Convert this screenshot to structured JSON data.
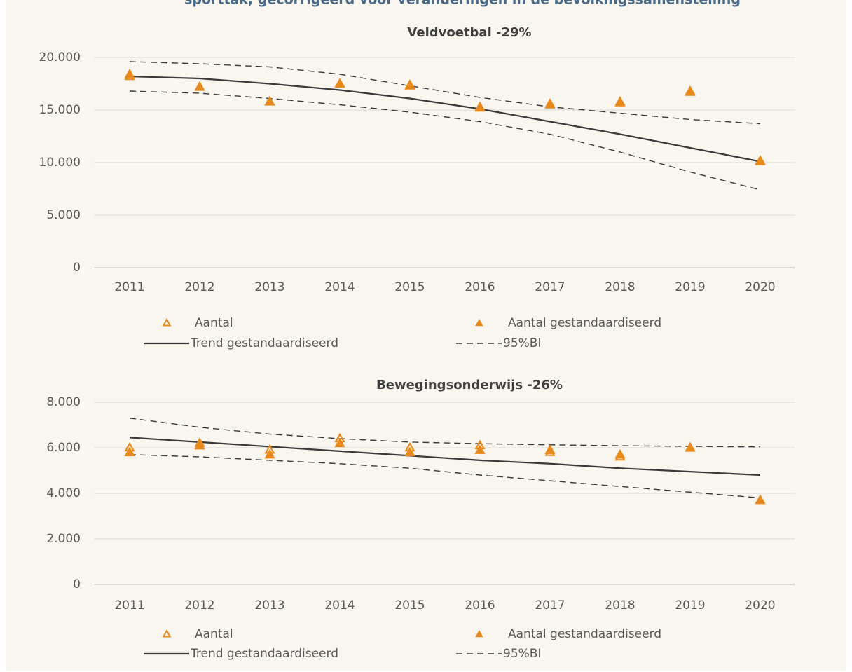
{
  "header": {
    "title": "sporttak, gecorrigeerd voor veranderingen in de bevolkingssamenstelling"
  },
  "chart_data": [
    {
      "type": "line",
      "title": "Veldvoetbal -29%",
      "categories": [
        "2011",
        "2012",
        "2013",
        "2014",
        "2015",
        "2016",
        "2017",
        "2018",
        "2019",
        "2020"
      ],
      "ylim": [
        0,
        20000
      ],
      "yticks": [
        0,
        {
          "value": 5000,
          "label": "5.000"
        },
        {
          "value": 10000,
          "label": "10.000"
        },
        {
          "value": 15000,
          "label": "15.000"
        },
        {
          "value": 20000,
          "label": "20.000"
        }
      ],
      "grid": true,
      "series": [
        {
          "name": "Aantal",
          "color": "#e8891c",
          "style": "open-marker",
          "values": [
            18200,
            17200,
            15800,
            17500,
            17300,
            15200,
            15500,
            15700,
            16700,
            10100
          ]
        },
        {
          "name": "Aantal gestandaardiseerd",
          "color": "#e8891c",
          "style": "filled-marker",
          "values": [
            18400,
            17200,
            15800,
            17500,
            17400,
            15300,
            15600,
            15800,
            16800,
            10200
          ]
        },
        {
          "name": "Trend gestandaardiseerd",
          "color": "#3a3a3a",
          "style": "solid",
          "values": [
            18200,
            18000,
            17500,
            16900,
            16100,
            15100,
            13900,
            12700,
            11400,
            10100
          ]
        },
        {
          "name": "95%BI",
          "color": "#3a3a3a",
          "style": "dashed",
          "upper": [
            19600,
            19400,
            19100,
            18400,
            17300,
            16200,
            15300,
            14700,
            14100,
            13700
          ],
          "lower": [
            16800,
            16600,
            16100,
            15500,
            14800,
            13900,
            12700,
            11000,
            9100,
            7400
          ]
        }
      ]
    },
    {
      "type": "line",
      "title": "Bewegingsonderwijs -26%",
      "categories": [
        "2011",
        "2012",
        "2013",
        "2014",
        "2015",
        "2016",
        "2017",
        "2018",
        "2019",
        "2020"
      ],
      "ylim": [
        0,
        8000
      ],
      "yticks": [
        0,
        {
          "value": 2000,
          "label": "2.000"
        },
        {
          "value": 4000,
          "label": "4.000"
        },
        {
          "value": 6000,
          "label": "6.000"
        },
        {
          "value": 8000,
          "label": "8.000"
        }
      ],
      "grid": true,
      "series": [
        {
          "name": "Aantal",
          "color": "#e8891c",
          "style": "open-marker",
          "values": [
            6000,
            6200,
            5900,
            6400,
            6000,
            6100,
            5800,
            5600,
            6000,
            3700
          ]
        },
        {
          "name": "Aantal gestandaardiseerd",
          "color": "#e8891c",
          "style": "filled-marker",
          "values": [
            5800,
            6100,
            5700,
            6200,
            5800,
            5900,
            5900,
            5700,
            6000,
            3700
          ]
        },
        {
          "name": "Trend gestandaardiseerd",
          "color": "#3a3a3a",
          "style": "solid",
          "values": [
            6450,
            6250,
            6050,
            5850,
            5650,
            5450,
            5300,
            5100,
            4950,
            4800
          ]
        },
        {
          "name": "95%BI",
          "color": "#3a3a3a",
          "style": "dashed",
          "upper": [
            7300,
            6900,
            6600,
            6400,
            6250,
            6180,
            6130,
            6090,
            6060,
            6040
          ],
          "lower": [
            5700,
            5600,
            5450,
            5300,
            5100,
            4800,
            4550,
            4300,
            4050,
            3800
          ]
        }
      ]
    }
  ]
}
